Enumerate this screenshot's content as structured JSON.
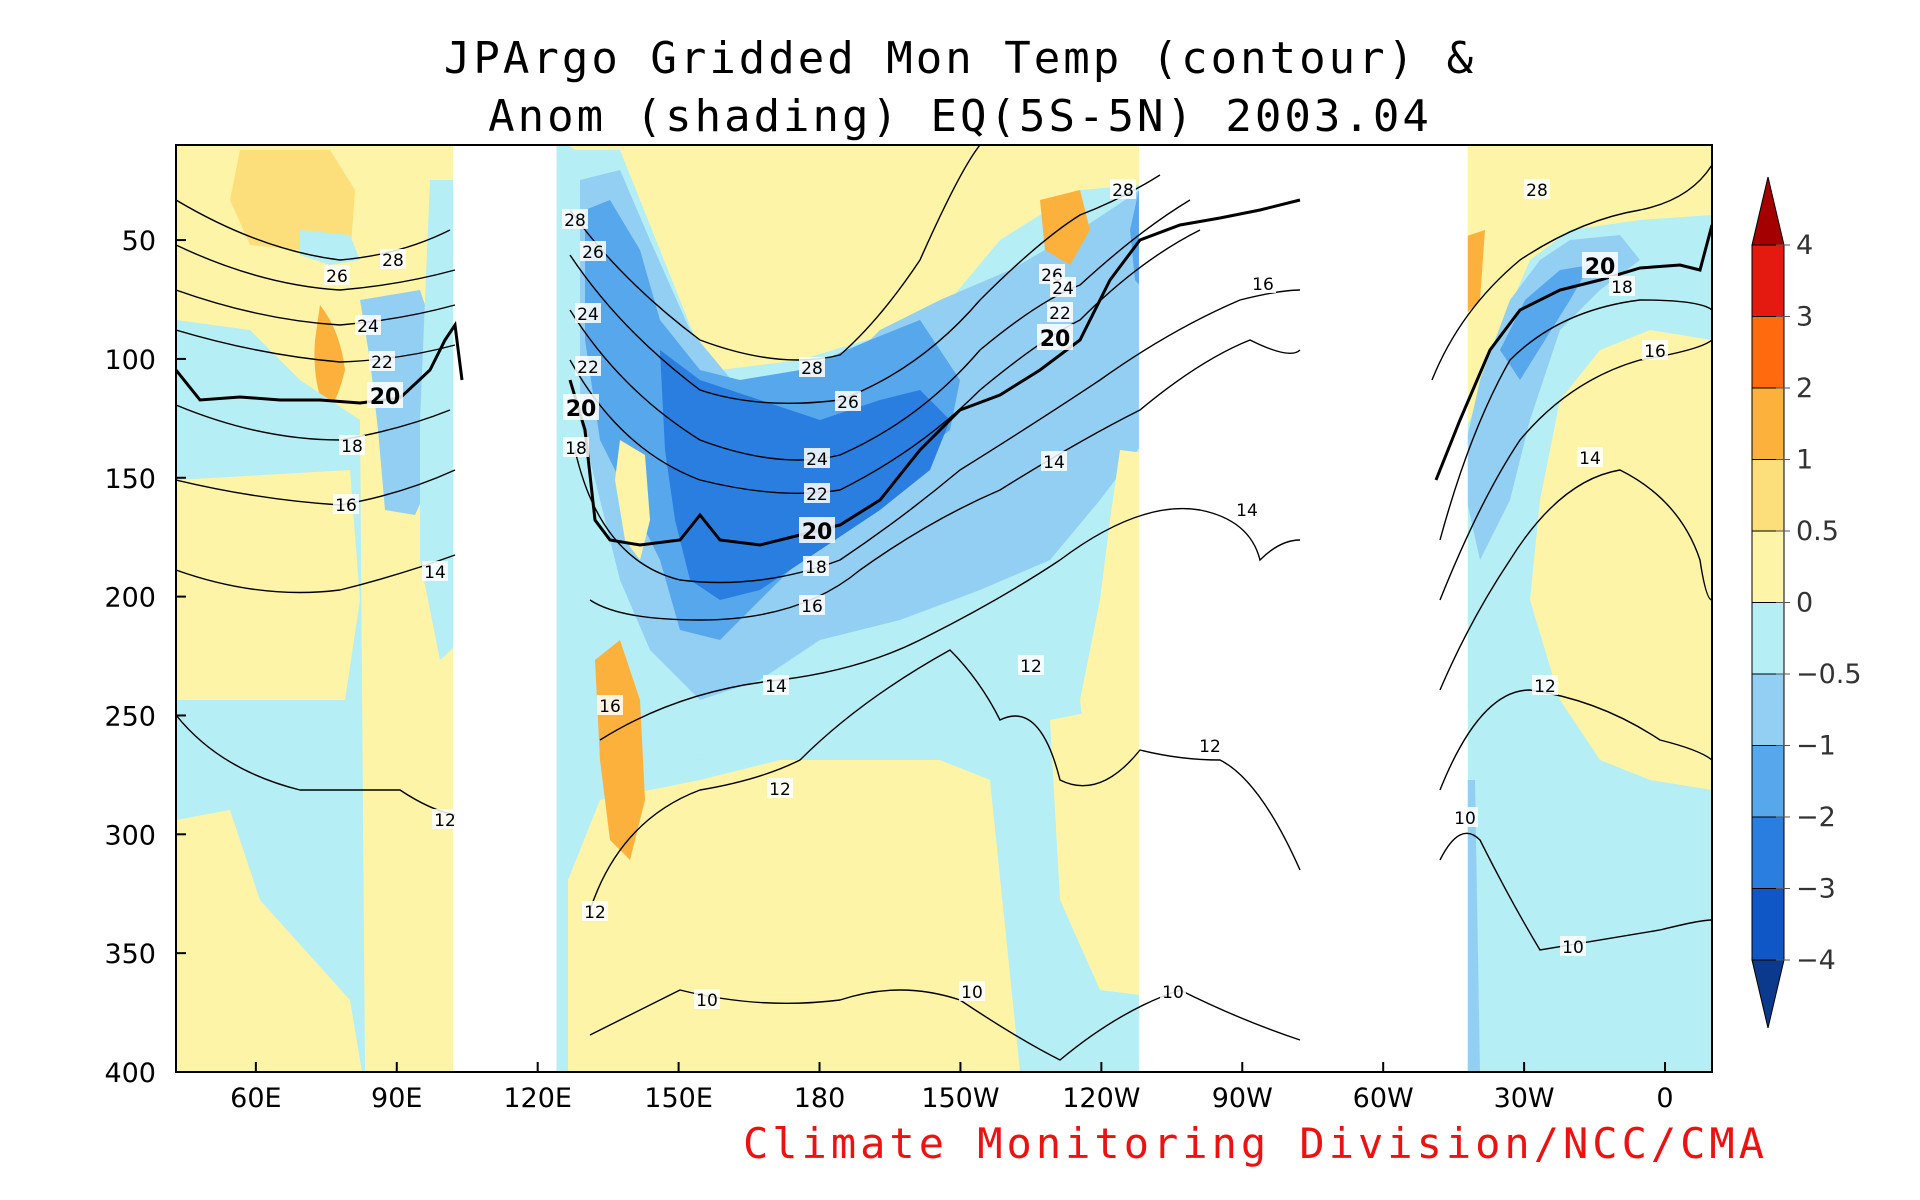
{
  "chart_data": {
    "type": "heatmap",
    "title_line1": "JPArgo Gridded Mon Temp (contour) &",
    "title_line2": "Anom (shading) EQ(5S-5N) 2003.04",
    "x_ticks": [
      {
        "lon": 60,
        "label": "60E"
      },
      {
        "lon": 90,
        "label": "90E"
      },
      {
        "lon": 120,
        "label": "120E"
      },
      {
        "lon": 150,
        "label": "150E"
      },
      {
        "lon": 180,
        "label": "180"
      },
      {
        "lon": 210,
        "label": "150W"
      },
      {
        "lon": 240,
        "label": "120W"
      },
      {
        "lon": 270,
        "label": "90W"
      },
      {
        "lon": 300,
        "label": "60W"
      },
      {
        "lon": 330,
        "label": "30W"
      },
      {
        "lon": 360,
        "label": "0"
      }
    ],
    "y_ticks": [
      50,
      100,
      150,
      200,
      250,
      300,
      350,
      400
    ],
    "xlim": [
      43,
      370
    ],
    "ylim": [
      10,
      400
    ],
    "ocean_segments": [
      [
        43,
        102
      ],
      [
        124,
        248
      ],
      [
        318,
        370
      ]
    ],
    "land_gaps": [
      [
        102,
        124
      ],
      [
        248,
        318
      ]
    ],
    "colorbar": {
      "levels": [
        "4",
        "3",
        "2",
        "1",
        "0.5",
        "0",
        "−0.5",
        "−1",
        "−2",
        "−3",
        "−4"
      ],
      "colors": [
        "#a50000",
        "#e41a10",
        "#ff6a0e",
        "#fbb13c",
        "#fcdf7a",
        "#fdf4a8",
        "#b5eef5",
        "#93cff3",
        "#57a7ec",
        "#2a7ee0",
        "#0f57c6",
        "#0b3a8d"
      ]
    },
    "isotherm_labels": [
      "28",
      "26",
      "24",
      "22",
      "20",
      "18",
      "16",
      "14",
      "12",
      "10"
    ],
    "credit": "Climate Monitoring Division/NCC/CMA"
  }
}
